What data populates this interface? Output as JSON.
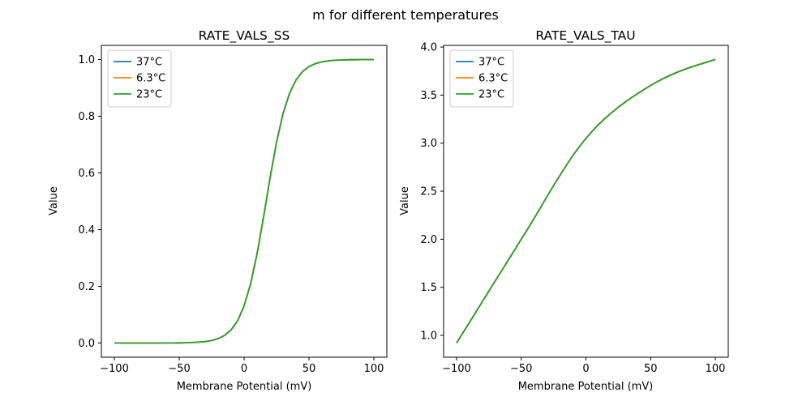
{
  "figure": {
    "suptitle": "m for different temperatures",
    "background": "#ffffff"
  },
  "chart_data": [
    {
      "type": "line",
      "title": "RATE_VALS_SS",
      "xlabel": "Membrane Potential (mV)",
      "ylabel": "Value",
      "xlim": [
        -110,
        110
      ],
      "ylim": [
        -0.05,
        1.05
      ],
      "xticks": [
        -100,
        -50,
        0,
        50,
        100
      ],
      "yticks": [
        0.0,
        0.2,
        0.4,
        0.6,
        0.8,
        1.0
      ],
      "legend_position": "upper left",
      "grid": false,
      "x": [
        -100,
        -95,
        -90,
        -85,
        -80,
        -75,
        -70,
        -65,
        -60,
        -55,
        -50,
        -45,
        -40,
        -35,
        -30,
        -25,
        -20,
        -15,
        -10,
        -5,
        0,
        5,
        10,
        15,
        20,
        25,
        30,
        35,
        40,
        45,
        50,
        55,
        60,
        65,
        70,
        75,
        80,
        85,
        90,
        95,
        100
      ],
      "series": [
        {
          "name": "37°C",
          "color": "#1f77b4",
          "values": [
            0.0,
            0.0,
            0.0,
            0.0,
            0.0,
            0.0,
            0.0001,
            0.0001,
            0.0002,
            0.0003,
            0.0006,
            0.001,
            0.0017,
            0.003,
            0.0052,
            0.009,
            0.0157,
            0.0271,
            0.0465,
            0.0787,
            0.1313,
            0.2086,
            0.3148,
            0.4447,
            0.5826,
            0.7087,
            0.8091,
            0.8808,
            0.9279,
            0.9574,
            0.9751,
            0.9856,
            0.9917,
            0.9952,
            0.9973,
            0.9984,
            0.9991,
            0.9995,
            0.9997,
            0.9998,
            0.9999
          ]
        },
        {
          "name": "6.3°C",
          "color": "#ff7f0e",
          "values": [
            0.0,
            0.0,
            0.0,
            0.0,
            0.0,
            0.0,
            0.0001,
            0.0001,
            0.0002,
            0.0003,
            0.0006,
            0.001,
            0.0017,
            0.003,
            0.0052,
            0.009,
            0.0157,
            0.0271,
            0.0465,
            0.0787,
            0.1313,
            0.2086,
            0.3148,
            0.4447,
            0.5826,
            0.7087,
            0.8091,
            0.8808,
            0.9279,
            0.9574,
            0.9751,
            0.9856,
            0.9917,
            0.9952,
            0.9973,
            0.9984,
            0.9991,
            0.9995,
            0.9997,
            0.9998,
            0.9999
          ]
        },
        {
          "name": "23°C",
          "color": "#2ca02c",
          "values": [
            0.0,
            0.0,
            0.0,
            0.0,
            0.0,
            0.0,
            0.0001,
            0.0001,
            0.0002,
            0.0003,
            0.0006,
            0.001,
            0.0017,
            0.003,
            0.0052,
            0.009,
            0.0157,
            0.0271,
            0.0465,
            0.0787,
            0.1313,
            0.2086,
            0.3148,
            0.4447,
            0.5826,
            0.7087,
            0.8091,
            0.8808,
            0.9279,
            0.9574,
            0.9751,
            0.9856,
            0.9917,
            0.9952,
            0.9973,
            0.9984,
            0.9991,
            0.9995,
            0.9997,
            0.9998,
            0.9999
          ]
        }
      ],
      "note": "All three temperature curves overlap exactly; only the last-drawn (23°C, green) is visible."
    },
    {
      "type": "line",
      "title": "RATE_VALS_TAU",
      "xlabel": "Membrane Potential (mV)",
      "ylabel": "Value",
      "xlim": [
        -110,
        110
      ],
      "ylim": [
        0.7725,
        4.0175
      ],
      "xticks": [
        -100,
        -50,
        0,
        50,
        100
      ],
      "yticks": [
        1.0,
        1.5,
        2.0,
        2.5,
        3.0,
        3.5,
        4.0
      ],
      "legend_position": "upper left",
      "grid": false,
      "x": [
        -100,
        -95,
        -90,
        -85,
        -80,
        -75,
        -70,
        -65,
        -60,
        -55,
        -50,
        -45,
        -40,
        -35,
        -30,
        -25,
        -20,
        -15,
        -10,
        -5,
        0,
        5,
        10,
        15,
        20,
        25,
        30,
        35,
        40,
        45,
        50,
        55,
        60,
        65,
        70,
        75,
        80,
        85,
        90,
        95,
        100
      ],
      "series": [
        {
          "name": "37°C",
          "color": "#1f77b4",
          "values": [
            0.92,
            1.028,
            1.136,
            1.244,
            1.352,
            1.46,
            1.568,
            1.676,
            1.784,
            1.892,
            2.0,
            2.108,
            2.22,
            2.333,
            2.446,
            2.558,
            2.667,
            2.773,
            2.873,
            2.965,
            3.05,
            3.127,
            3.197,
            3.261,
            3.319,
            3.374,
            3.424,
            3.471,
            3.516,
            3.559,
            3.6,
            3.639,
            3.674,
            3.706,
            3.735,
            3.761,
            3.786,
            3.808,
            3.829,
            3.85,
            3.87
          ]
        },
        {
          "name": "6.3°C",
          "color": "#ff7f0e",
          "values": [
            0.92,
            1.028,
            1.136,
            1.244,
            1.352,
            1.46,
            1.568,
            1.676,
            1.784,
            1.892,
            2.0,
            2.108,
            2.22,
            2.333,
            2.446,
            2.558,
            2.667,
            2.773,
            2.873,
            2.965,
            3.05,
            3.127,
            3.197,
            3.261,
            3.319,
            3.374,
            3.424,
            3.471,
            3.516,
            3.559,
            3.6,
            3.639,
            3.674,
            3.706,
            3.735,
            3.761,
            3.786,
            3.808,
            3.829,
            3.85,
            3.87
          ]
        },
        {
          "name": "23°C",
          "color": "#2ca02c",
          "values": [
            0.92,
            1.028,
            1.136,
            1.244,
            1.352,
            1.46,
            1.568,
            1.676,
            1.784,
            1.892,
            2.0,
            2.108,
            2.22,
            2.333,
            2.446,
            2.558,
            2.667,
            2.773,
            2.873,
            2.965,
            3.05,
            3.127,
            3.197,
            3.261,
            3.319,
            3.374,
            3.424,
            3.471,
            3.516,
            3.559,
            3.6,
            3.639,
            3.674,
            3.706,
            3.735,
            3.761,
            3.786,
            3.808,
            3.829,
            3.85,
            3.87
          ]
        }
      ],
      "note": "All three temperature curves overlap exactly; only the last-drawn (23°C, green) is visible."
    }
  ]
}
